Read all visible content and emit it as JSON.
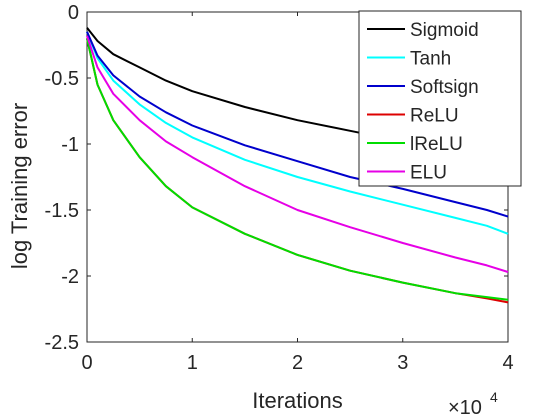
{
  "chart_data": {
    "type": "line",
    "title": "",
    "xlabel": "Iterations",
    "ylabel": "log Training error",
    "x_exponent_label": "×10",
    "x_exponent_power": "4",
    "xlim": [
      0,
      4
    ],
    "ylim": [
      -2.5,
      0
    ],
    "xticks": [
      0,
      1,
      2,
      3,
      4
    ],
    "xtick_labels": [
      "0",
      "1",
      "2",
      "3",
      "4"
    ],
    "yticks": [
      0,
      -0.5,
      -1,
      -1.5,
      -2,
      -2.5
    ],
    "ytick_labels": [
      "0",
      "-0.5",
      "-1",
      "-1.5",
      "-2",
      "-2.5"
    ],
    "grid": false,
    "legend_position": "top-right",
    "series": [
      {
        "name": "Sigmoid",
        "color": "#000000",
        "x": [
          0,
          0.1,
          0.25,
          0.5,
          0.75,
          1.0,
          1.5,
          2.0,
          2.5,
          3.0,
          3.5,
          3.8,
          4.0
        ],
        "y": [
          -0.12,
          -0.22,
          -0.32,
          -0.42,
          -0.52,
          -0.6,
          -0.72,
          -0.82,
          -0.9,
          -0.98,
          -1.06,
          -1.12,
          -1.2
        ]
      },
      {
        "name": "Tanh",
        "color": "#00ffff",
        "x": [
          0,
          0.1,
          0.25,
          0.5,
          0.75,
          1.0,
          1.5,
          2.0,
          2.5,
          3.0,
          3.5,
          3.8,
          4.0
        ],
        "y": [
          -0.15,
          -0.35,
          -0.52,
          -0.7,
          -0.84,
          -0.95,
          -1.12,
          -1.25,
          -1.36,
          -1.46,
          -1.56,
          -1.62,
          -1.68
        ]
      },
      {
        "name": "Softsign",
        "color": "#0000cc",
        "x": [
          0,
          0.1,
          0.25,
          0.5,
          0.75,
          1.0,
          1.5,
          2.0,
          2.5,
          3.0,
          3.5,
          3.8,
          4.0
        ],
        "y": [
          -0.15,
          -0.33,
          -0.48,
          -0.64,
          -0.76,
          -0.86,
          -1.01,
          -1.13,
          -1.25,
          -1.34,
          -1.44,
          -1.5,
          -1.55
        ]
      },
      {
        "name": "ReLU",
        "color": "#dd0000",
        "x": [
          0,
          0.1,
          0.25,
          0.5,
          0.75,
          1.0,
          1.5,
          2.0,
          2.5,
          3.0,
          3.5,
          3.8,
          4.0
        ],
        "y": [
          -0.2,
          -0.55,
          -0.82,
          -1.1,
          -1.32,
          -1.48,
          -1.68,
          -1.84,
          -1.96,
          -2.05,
          -2.13,
          -2.17,
          -2.2
        ]
      },
      {
        "name": "lReLU",
        "color": "#00dd00",
        "x": [
          0,
          0.1,
          0.25,
          0.5,
          0.75,
          1.0,
          1.5,
          2.0,
          2.5,
          3.0,
          3.5,
          3.8,
          4.0
        ],
        "y": [
          -0.2,
          -0.55,
          -0.82,
          -1.1,
          -1.32,
          -1.48,
          -1.68,
          -1.84,
          -1.96,
          -2.05,
          -2.13,
          -2.16,
          -2.18
        ]
      },
      {
        "name": "ELU",
        "color": "#e600e6",
        "x": [
          0,
          0.1,
          0.25,
          0.5,
          0.75,
          1.0,
          1.5,
          2.0,
          2.5,
          3.0,
          3.5,
          3.8,
          4.0
        ],
        "y": [
          -0.18,
          -0.42,
          -0.62,
          -0.82,
          -0.98,
          -1.1,
          -1.32,
          -1.5,
          -1.63,
          -1.75,
          -1.86,
          -1.92,
          -1.97
        ]
      }
    ]
  }
}
